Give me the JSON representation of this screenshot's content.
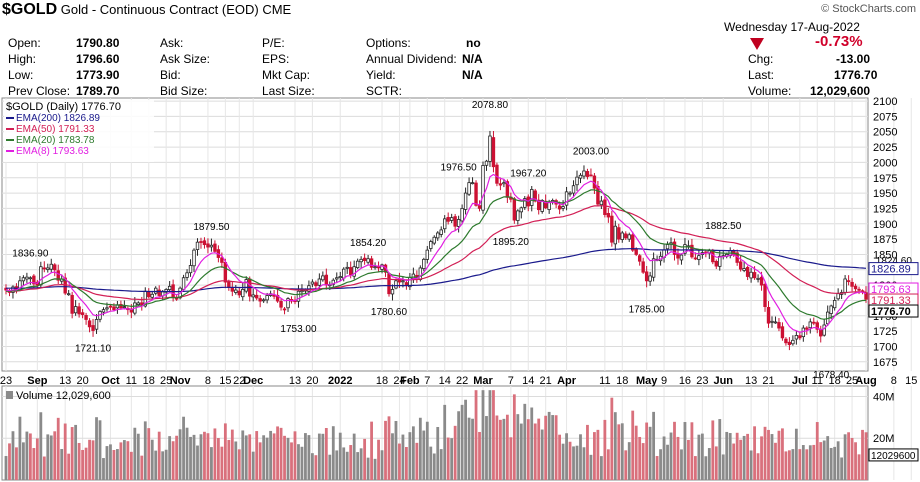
{
  "header": {
    "symbol": "$GOLD",
    "name": "Gold - Continuous Contract (EOD)",
    "exchange": "CME",
    "brand": "© StockCharts.com",
    "date": "Wednesday 17-Aug-2022",
    "change_pct": "-0.73%",
    "quote": {
      "open_label": "Open:",
      "open": "1790.80",
      "high_label": "High:",
      "high": "1796.60",
      "low_label": "Low:",
      "low": "1773.90",
      "prev_label": "Prev Close:",
      "prev": "1789.70",
      "ask_label": "Ask:",
      "asksize_label": "Ask Size:",
      "bid_label": "Bid:",
      "bidsize_label": "Bid Size:",
      "pe_label": "P/E:",
      "eps_label": "EPS:",
      "mktcap_label": "Mkt Cap:",
      "lastsize_label": "Last Size:",
      "options_label": "Options:",
      "options": "no",
      "div_label": "Annual Dividend:",
      "div": "N/A",
      "yield_label": "Yield:",
      "yield": "N/A",
      "sctr_label": "SCTR:",
      "chg_label": "Chg:",
      "chg": "-13.00",
      "last_label": "Last:",
      "last": "1776.70",
      "vol_label": "Volume:",
      "vol": "12,029,600"
    }
  },
  "colors": {
    "up": "#262626",
    "down": "#cc1133",
    "ema200": "#1a1a8c",
    "ema50": "#d21f55",
    "ema20": "#2d7a2d",
    "ema8": "#e11ee1",
    "vol_up": "#8a8a8a",
    "vol_down": "#d9707c"
  },
  "legend": {
    "main": "$GOLD (Daily) 1776.70",
    "ema200": "EMA(200) 1826.89",
    "ema50": "EMA(50) 1791.33",
    "ema20": "EMA(20) 1783.78",
    "ema8": "EMA(8) 1793.63"
  },
  "volume_legend": "Volume 12,029,600",
  "chart_data": {
    "type": "candlestick",
    "title": "$GOLD (Daily) 1776.70",
    "ylim": [
      1660,
      2105
    ],
    "y_ticks": [
      1675,
      1700,
      1725,
      1750,
      1775,
      1800,
      1825,
      1850,
      1875,
      1900,
      1925,
      1950,
      1975,
      2000,
      2025,
      2050,
      2075,
      2100
    ],
    "volume_ticks": [
      "20M",
      "40M"
    ],
    "volume_ylim": [
      0,
      45
    ],
    "x_labels": [
      "23",
      "Sep",
      "13",
      "20",
      "Oct",
      "11",
      "18",
      "25",
      "Nov",
      "8",
      "15",
      "22",
      "Dec",
      "13",
      "20",
      "2022",
      "18",
      "24",
      "Feb",
      "7",
      "14",
      "22",
      "Mar",
      "7",
      "14",
      "21",
      "Apr",
      "11",
      "18",
      "May",
      "9",
      "16",
      "23",
      "Jun",
      "13",
      "21",
      "Jul",
      "11",
      "18",
      "25",
      "Aug",
      "8",
      "15"
    ],
    "x_label_index": [
      0,
      9,
      17,
      22,
      30,
      36,
      41,
      46,
      50,
      58,
      63,
      67,
      71,
      83,
      88,
      96,
      108,
      113,
      116,
      121,
      126,
      131,
      137,
      145,
      150,
      155,
      161,
      172,
      177,
      184,
      189,
      195,
      200,
      206,
      214,
      219,
      228,
      233,
      238,
      243,
      247,
      255,
      260
    ],
    "close": [
      1792,
      1788,
      1797,
      1791,
      1807,
      1812,
      1813,
      1812,
      1802,
      1800,
      1830,
      1827,
      1828,
      1834,
      1825,
      1808,
      1810,
      1787,
      1786,
      1754,
      1765,
      1753,
      1752,
      1744,
      1732,
      1726,
      1744,
      1757,
      1760,
      1763,
      1764,
      1760,
      1768,
      1763,
      1765,
      1760,
      1756,
      1771,
      1771,
      1768,
      1790,
      1781,
      1785,
      1795,
      1783,
      1789,
      1793,
      1798,
      1781,
      1777,
      1795,
      1812,
      1820,
      1832,
      1857,
      1870,
      1870,
      1866,
      1862,
      1865,
      1855,
      1845,
      1837,
      1805,
      1796,
      1790,
      1792,
      1784,
      1793,
      1809,
      1782,
      1784,
      1779,
      1774,
      1776,
      1783,
      1786,
      1783,
      1774,
      1764,
      1761,
      1778,
      1774,
      1773,
      1790,
      1791,
      1792,
      1799,
      1805,
      1799,
      1810,
      1815,
      1800,
      1801,
      1808,
      1812,
      1814,
      1826,
      1829,
      1817,
      1830,
      1839,
      1842,
      1840,
      1843,
      1829,
      1830,
      1828,
      1833,
      1821,
      1786,
      1793,
      1807,
      1805,
      1807,
      1800,
      1812,
      1818,
      1812,
      1828,
      1842,
      1857,
      1871,
      1878,
      1885,
      1890,
      1908,
      1904,
      1910,
      1896,
      1907,
      1925,
      1950,
      1967,
      1967,
      1930,
      1925,
      1995,
      2002,
      2043,
      1993,
      1966,
      1963,
      1967,
      1943,
      1940,
      1906,
      1921,
      1926,
      1941,
      1929,
      1956,
      1937,
      1923,
      1938,
      1926,
      1935,
      1938,
      1932,
      1924,
      1928,
      1952,
      1950,
      1962,
      1976,
      1979,
      1986,
      1977,
      1979,
      1958,
      1932,
      1937,
      1915,
      1911,
      1870,
      1896,
      1875,
      1885,
      1877,
      1882,
      1857,
      1850,
      1839,
      1821,
      1807,
      1815,
      1843,
      1842,
      1847,
      1857,
      1866,
      1869,
      1850,
      1844,
      1849,
      1866,
      1864,
      1846,
      1844,
      1848,
      1853,
      1854,
      1856,
      1838,
      1831,
      1847,
      1848,
      1850,
      1856,
      1850,
      1837,
      1826,
      1827,
      1814,
      1821,
      1812,
      1811,
      1800,
      1765,
      1738,
      1741,
      1740,
      1730,
      1714,
      1706,
      1703,
      1710,
      1718,
      1714,
      1730,
      1728,
      1740,
      1739,
      1728,
      1717,
      1735,
      1756,
      1766,
      1775,
      1786,
      1788,
      1810,
      1806,
      1798,
      1794,
      1793,
      1789,
      1777
    ],
    "labels": [
      {
        "text": "1836.90",
        "i": 7,
        "v": 1837
      },
      {
        "text": "1721.10",
        "i": 25,
        "v": 1721
      },
      {
        "text": "1879.50",
        "i": 59,
        "v": 1880
      },
      {
        "text": "1753.00",
        "i": 84,
        "v": 1753
      },
      {
        "text": "1854.20",
        "i": 104,
        "v": 1854
      },
      {
        "text": "1780.60",
        "i": 110,
        "v": 1781
      },
      {
        "text": "1976.50",
        "i": 130,
        "v": 1977
      },
      {
        "text": "2078.80",
        "i": 139,
        "v": 2079
      },
      {
        "text": "1895.20",
        "i": 145,
        "v": 1895
      },
      {
        "text": "1967.20",
        "i": 150,
        "v": 1967
      },
      {
        "text": "2003.00",
        "i": 168,
        "v": 2003
      },
      {
        "text": "1785.00",
        "i": 184,
        "v": 1785
      },
      {
        "text": "1882.50",
        "i": 206,
        "v": 1882
      },
      {
        "text": "1678.40",
        "i": 237,
        "v": 1678
      },
      {
        "text": "1824.60",
        "i": 255,
        "v": 1825
      }
    ],
    "price_tags": [
      {
        "text": "1826.89",
        "v": 1826.89,
        "color": "#1a1a8c"
      },
      {
        "text": "1793.63",
        "v": 1793.63,
        "color": "#e11ee1"
      },
      {
        "text": "1791.33",
        "v": 1791.33,
        "color": "#d21f55"
      },
      {
        "text": "1776.70",
        "v": 1776.7,
        "color": "#000000"
      }
    ],
    "volume_tag": "12029600"
  }
}
